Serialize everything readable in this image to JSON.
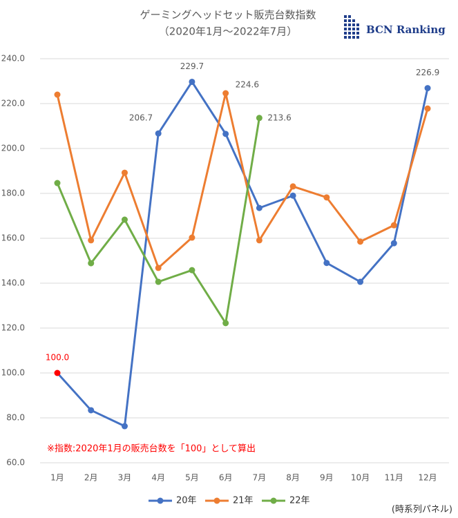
{
  "chart_data": {
    "type": "line",
    "title": "ゲーミングヘッドセット販売台数指数",
    "subtitle": "（2020年1月～2022年7月）",
    "logo": "BCN Ranking",
    "note": "※指数:2020年1月の販売台数を「100」として算出",
    "footer": "(時系列パネル)",
    "categories": [
      "1月",
      "2月",
      "3月",
      "4月",
      "5月",
      "6月",
      "7月",
      "8月",
      "9月",
      "10月",
      "11月",
      "12月"
    ],
    "series": [
      {
        "name": "20年",
        "color": "#4472c4",
        "values": [
          100.0,
          83.4,
          76.3,
          206.7,
          229.7,
          206.5,
          173.5,
          179.0,
          149.0,
          140.6,
          157.8,
          226.9
        ],
        "value_labels": [
          "100.0",
          null,
          null,
          "206.7",
          "229.7",
          null,
          null,
          null,
          null,
          null,
          null,
          "226.9"
        ]
      },
      {
        "name": "21年",
        "color": "#ed7d31",
        "values": [
          224.0,
          159.1,
          189.2,
          146.8,
          160.3,
          224.6,
          159.1,
          183.1,
          178.2,
          158.5,
          165.8,
          217.8
        ],
        "value_labels": [
          null,
          null,
          null,
          null,
          null,
          "224.6",
          null,
          null,
          null,
          null,
          null,
          null
        ]
      },
      {
        "name": "22年",
        "color": "#70ad47",
        "values": [
          184.6,
          148.9,
          168.3,
          140.6,
          145.8,
          122.2,
          213.6,
          null,
          null,
          null,
          null,
          null
        ],
        "value_labels": [
          null,
          null,
          null,
          null,
          null,
          null,
          "213.6",
          null,
          null,
          null,
          null,
          null
        ]
      }
    ],
    "highlight": {
      "series": 0,
      "index": 0,
      "color": "#ff0000"
    },
    "ylim": [
      60,
      240
    ],
    "yticks": [
      {
        "value": 60,
        "label": "60.0"
      },
      {
        "value": 80,
        "label": "80.0"
      },
      {
        "value": 100,
        "label": "100.0"
      },
      {
        "value": 120,
        "label": "120.0"
      },
      {
        "value": 140,
        "label": "140.0"
      },
      {
        "value": 160,
        "label": "160.0"
      },
      {
        "value": 180,
        "label": "180.0"
      },
      {
        "value": 200,
        "label": "200.0"
      },
      {
        "value": 220,
        "label": "220.0"
      },
      {
        "value": 240,
        "label": "240.0"
      }
    ],
    "grid": true
  }
}
